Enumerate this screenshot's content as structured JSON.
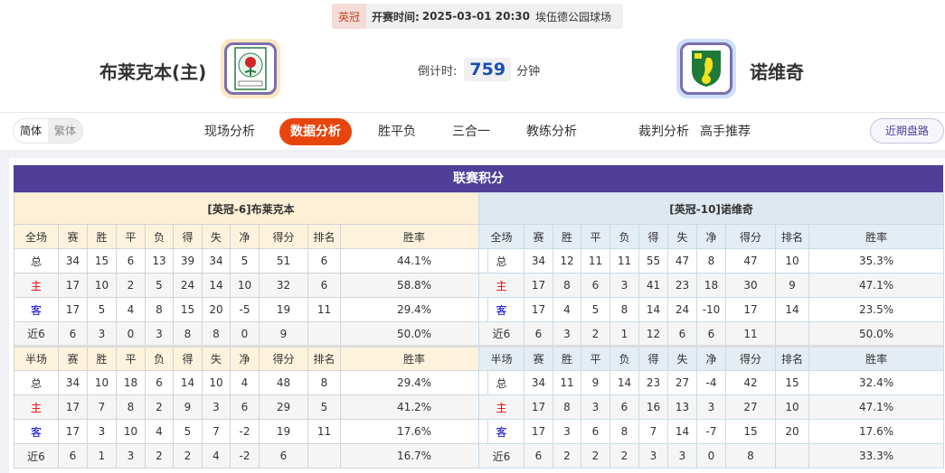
{
  "match": {
    "league": "英冠",
    "time_label": "开赛时间:",
    "time": "2025-03-01 20:30",
    "venue": "埃伍德公园球场"
  },
  "home_team": {
    "name": "布莱克本(主)",
    "logo": "blackburn-rovers-crest"
  },
  "away_team": {
    "name": "诺维奇",
    "logo": "norwich-city-canary-crest"
  },
  "countdown": {
    "label": "倒计时:",
    "value": "759",
    "unit": "分钟"
  },
  "lang": {
    "simplified": "简体",
    "traditional": "繁体"
  },
  "tabs": [
    {
      "label": "现场分析"
    },
    {
      "label": "数据分析",
      "active": true
    },
    {
      "label": "胜平负"
    },
    {
      "label": "三合一"
    },
    {
      "label": "教练分析"
    },
    {
      "label": "裁判分析"
    },
    {
      "label": "高手推荐"
    }
  ],
  "recent_button": "近期盘路",
  "colors": {
    "accent": "#e8440e",
    "title_bar": "#503f98",
    "home_label": "#ee0000",
    "away_label": "#0000cc"
  },
  "standings": {
    "title": "联赛积分",
    "columns": [
      "赛",
      "胜",
      "平",
      "负",
      "得",
      "失",
      "净",
      "得分",
      "排名",
      "胜率"
    ],
    "tables": [
      {
        "team": "[英冠-6]布莱克本",
        "full": {
          "label": "全场",
          "rows": [
            [
              "总",
              "34",
              "15",
              "6",
              "13",
              "39",
              "34",
              "5",
              "51",
              "6",
              "44.1%"
            ],
            [
              "主",
              "17",
              "10",
              "2",
              "5",
              "24",
              "14",
              "10",
              "32",
              "6",
              "58.8%"
            ],
            [
              "客",
              "17",
              "5",
              "4",
              "8",
              "15",
              "20",
              "-5",
              "19",
              "11",
              "29.4%"
            ],
            [
              "近6",
              "6",
              "3",
              "0",
              "3",
              "8",
              "8",
              "0",
              "9",
              "",
              "50.0%"
            ]
          ]
        },
        "half": {
          "label": "半场",
          "rows": [
            [
              "总",
              "34",
              "10",
              "18",
              "6",
              "14",
              "10",
              "4",
              "48",
              "8",
              "29.4%"
            ],
            [
              "主",
              "17",
              "7",
              "8",
              "2",
              "9",
              "3",
              "6",
              "29",
              "5",
              "41.2%"
            ],
            [
              "客",
              "17",
              "3",
              "10",
              "4",
              "5",
              "7",
              "-2",
              "19",
              "11",
              "17.6%"
            ],
            [
              "近6",
              "6",
              "1",
              "3",
              "2",
              "2",
              "4",
              "-2",
              "6",
              "",
              "16.7%"
            ]
          ]
        }
      },
      {
        "team": "[英冠-10]诺维奇",
        "full": {
          "label": "全场",
          "rows": [
            [
              "总",
              "34",
              "12",
              "11",
              "11",
              "55",
              "47",
              "8",
              "47",
              "10",
              "35.3%"
            ],
            [
              "主",
              "17",
              "8",
              "6",
              "3",
              "41",
              "23",
              "18",
              "30",
              "9",
              "47.1%"
            ],
            [
              "客",
              "17",
              "4",
              "5",
              "8",
              "14",
              "24",
              "-10",
              "17",
              "14",
              "23.5%"
            ],
            [
              "近6",
              "6",
              "3",
              "2",
              "1",
              "12",
              "6",
              "6",
              "11",
              "",
              "50.0%"
            ]
          ]
        },
        "half": {
          "label": "半场",
          "rows": [
            [
              "总",
              "34",
              "11",
              "9",
              "14",
              "23",
              "27",
              "-4",
              "42",
              "15",
              "32.4%"
            ],
            [
              "主",
              "17",
              "8",
              "3",
              "6",
              "16",
              "13",
              "3",
              "27",
              "10",
              "47.1%"
            ],
            [
              "客",
              "17",
              "3",
              "6",
              "8",
              "7",
              "14",
              "-7",
              "15",
              "20",
              "17.6%"
            ],
            [
              "近6",
              "6",
              "2",
              "2",
              "2",
              "3",
              "3",
              "0",
              "8",
              "",
              "33.3%"
            ]
          ]
        }
      }
    ]
  }
}
